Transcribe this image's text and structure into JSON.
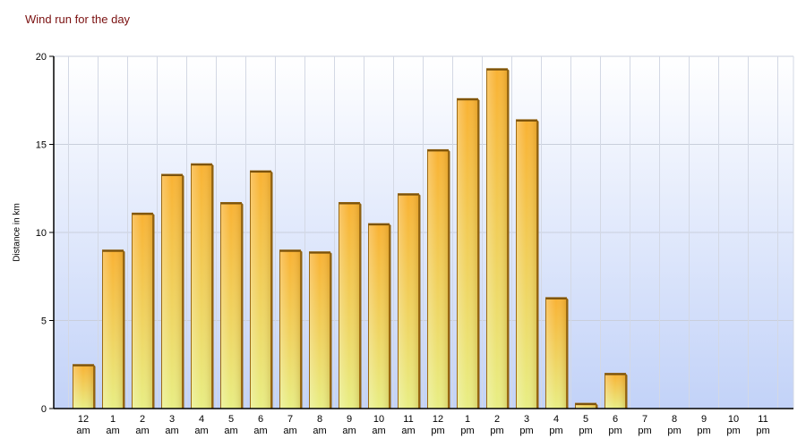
{
  "chart_data": {
    "type": "bar",
    "title": "Wind run for the day",
    "xlabel": "",
    "ylabel": "Distance in km",
    "ylim": [
      0,
      20
    ],
    "yticks": [
      0,
      5,
      10,
      15,
      20
    ],
    "grid": true,
    "categories": [
      [
        "12",
        "am"
      ],
      [
        "1",
        "am"
      ],
      [
        "2",
        "am"
      ],
      [
        "3",
        "am"
      ],
      [
        "4",
        "am"
      ],
      [
        "5",
        "am"
      ],
      [
        "6",
        "am"
      ],
      [
        "7",
        "am"
      ],
      [
        "8",
        "am"
      ],
      [
        "9",
        "am"
      ],
      [
        "10",
        "am"
      ],
      [
        "11",
        "am"
      ],
      [
        "12",
        "pm"
      ],
      [
        "1",
        "pm"
      ],
      [
        "2",
        "pm"
      ],
      [
        "3",
        "pm"
      ],
      [
        "4",
        "pm"
      ],
      [
        "5",
        "pm"
      ],
      [
        "6",
        "pm"
      ],
      [
        "7",
        "pm"
      ],
      [
        "8",
        "pm"
      ],
      [
        "9",
        "pm"
      ],
      [
        "10",
        "pm"
      ],
      [
        "11",
        "pm"
      ]
    ],
    "values": [
      2.5,
      9.0,
      11.1,
      13.3,
      13.9,
      11.7,
      13.5,
      9.0,
      8.9,
      11.7,
      10.5,
      12.2,
      14.7,
      17.6,
      19.3,
      16.4,
      6.3,
      0.3,
      2.0,
      0,
      0,
      0,
      0,
      0
    ],
    "colors": {
      "bar_top": "#f9b233",
      "bar_bottom": "#e8ee84",
      "bar_edge": "#9c6a14",
      "bg_top": "#ffffff",
      "bg_bottom": "#c2d2f8"
    }
  }
}
